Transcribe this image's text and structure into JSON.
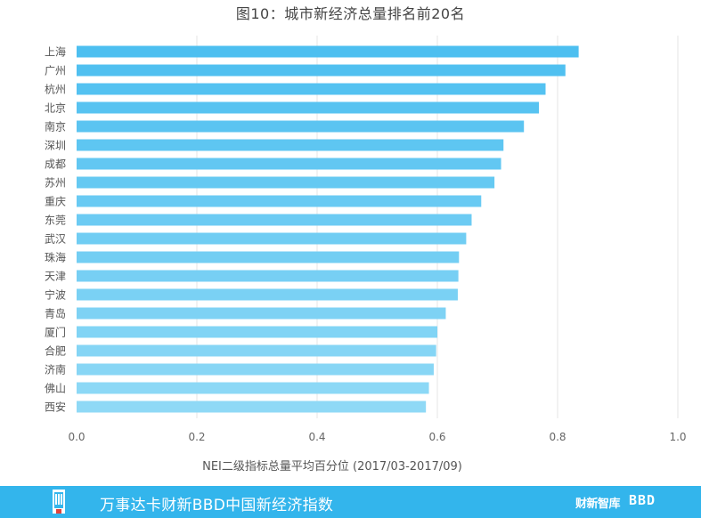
{
  "title": "图10：城市新经济总量排名前20名",
  "chart_data": {
    "type": "bar",
    "orientation": "horizontal",
    "categories": [
      "上海",
      "广州",
      "杭州",
      "北京",
      "南京",
      "深圳",
      "成都",
      "苏州",
      "重庆",
      "东莞",
      "武汉",
      "珠海",
      "天津",
      "宁波",
      "青岛",
      "厦门",
      "合肥",
      "济南",
      "佛山",
      "西安"
    ],
    "values": [
      0.835,
      0.813,
      0.78,
      0.769,
      0.744,
      0.71,
      0.706,
      0.695,
      0.673,
      0.657,
      0.648,
      0.636,
      0.635,
      0.634,
      0.614,
      0.6,
      0.598,
      0.594,
      0.586,
      0.581
    ],
    "xlabel": "NEI二级指标总量平均百分位 (2017/03-2017/09)",
    "xlim": [
      0,
      1.0
    ],
    "xticks": [
      "0.0",
      "0.2",
      "0.4",
      "0.6",
      "0.8",
      "1.0"
    ],
    "grid": "vertical",
    "colors": {
      "bar_top": "#4DBFF0",
      "bar_bottom": "#8FD9F6",
      "grid": "#E6E6E6",
      "text": "#555555"
    }
  },
  "footer": {
    "text": "万事达卡财新BBD中国新经济指数",
    "brand1": "财新智库",
    "brand2": "BBD",
    "logo_icon": "building-logo-icon",
    "bg_color": "#33B5EC"
  }
}
